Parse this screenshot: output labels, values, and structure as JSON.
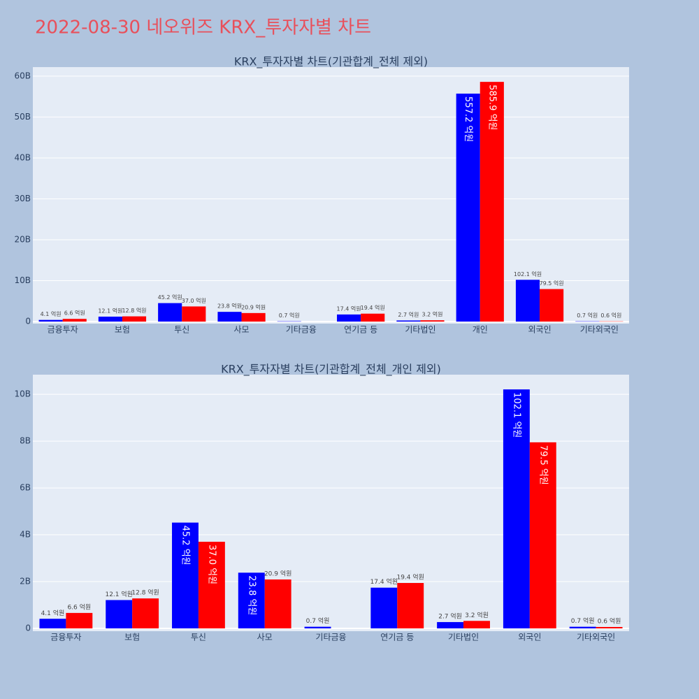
{
  "title": "2022-08-30 네오위즈 KRX_투자자별 차트",
  "chart_data": [
    {
      "type": "bar",
      "title": "KRX_투자자별 차트(기관합계_전체 제외)",
      "categories": [
        "금융투자",
        "보험",
        "투신",
        "사모",
        "기타금융",
        "연기금 등",
        "기타법인",
        "개인",
        "외국인",
        "기타외국인"
      ],
      "series": [
        {
          "color": "#0000ff",
          "values": [
            0.41,
            1.21,
            4.52,
            2.38,
            0.07,
            1.74,
            0.27,
            55.72,
            10.21,
            0.07
          ],
          "value_labels": [
            "4.1 억원",
            "12.1 억원",
            "45.2 억원",
            "23.8 억원",
            "0.7 억원",
            "17.4 억원",
            "2.7 억원",
            "557.2 억원",
            "102.1 억원",
            "0.7 억원"
          ]
        },
        {
          "color": "#ff0000",
          "values": [
            0.66,
            1.28,
            3.7,
            2.09,
            null,
            1.94,
            0.32,
            58.59,
            7.95,
            0.06
          ],
          "value_labels": [
            "6.6 억원",
            "12.8 억원",
            "37.0 억원",
            "20.9 억원",
            null,
            "19.4 억원",
            "3.2 억원",
            "585.9 억원",
            "79.5 억원",
            "0.6 억원"
          ]
        }
      ],
      "ylim": [
        -0.5,
        62.2
      ],
      "yticks": [
        0,
        {
          "value": 10,
          "label": "10B"
        },
        {
          "value": 20,
          "label": "20B"
        },
        {
          "value": 30,
          "label": "30B"
        },
        {
          "value": 40,
          "label": "40B"
        },
        {
          "value": 50,
          "label": "50B"
        },
        {
          "value": 60,
          "label": "60B"
        }
      ],
      "grid": true
    },
    {
      "type": "bar",
      "title": "KRX_투자자별 차트(기관합계_전체_개인 제외)",
      "categories": [
        "금융투자",
        "보험",
        "투신",
        "사모",
        "기타금융",
        "연기금 등",
        "기타법인",
        "외국인",
        "기타외국인"
      ],
      "series": [
        {
          "color": "#0000ff",
          "values": [
            0.41,
            1.21,
            4.52,
            2.38,
            0.07,
            1.74,
            0.27,
            10.21,
            0.07
          ],
          "value_labels": [
            "4.1 억원",
            "12.1 억원",
            "45.2 억원",
            "23.8 억원",
            "0.7 억원",
            "17.4 억원",
            "2.7 억원",
            "102.1 억원",
            "0.7 억원"
          ]
        },
        {
          "color": "#ff0000",
          "values": [
            0.66,
            1.28,
            3.7,
            2.09,
            null,
            1.94,
            0.32,
            7.95,
            0.06
          ],
          "value_labels": [
            "6.6 억원",
            "12.8 억원",
            "37.0 억원",
            "20.9 억원",
            null,
            "19.4 억원",
            "3.2 억원",
            "79.5 억원",
            "0.6 억원"
          ]
        }
      ],
      "ylim": [
        -0.12,
        10.84
      ],
      "yticks": [
        0,
        {
          "value": 2,
          "label": "2B"
        },
        {
          "value": 4,
          "label": "4B"
        },
        {
          "value": 6,
          "label": "6B"
        },
        {
          "value": 8,
          "label": "8B"
        },
        {
          "value": 10,
          "label": "10B"
        }
      ],
      "grid": true
    }
  ]
}
